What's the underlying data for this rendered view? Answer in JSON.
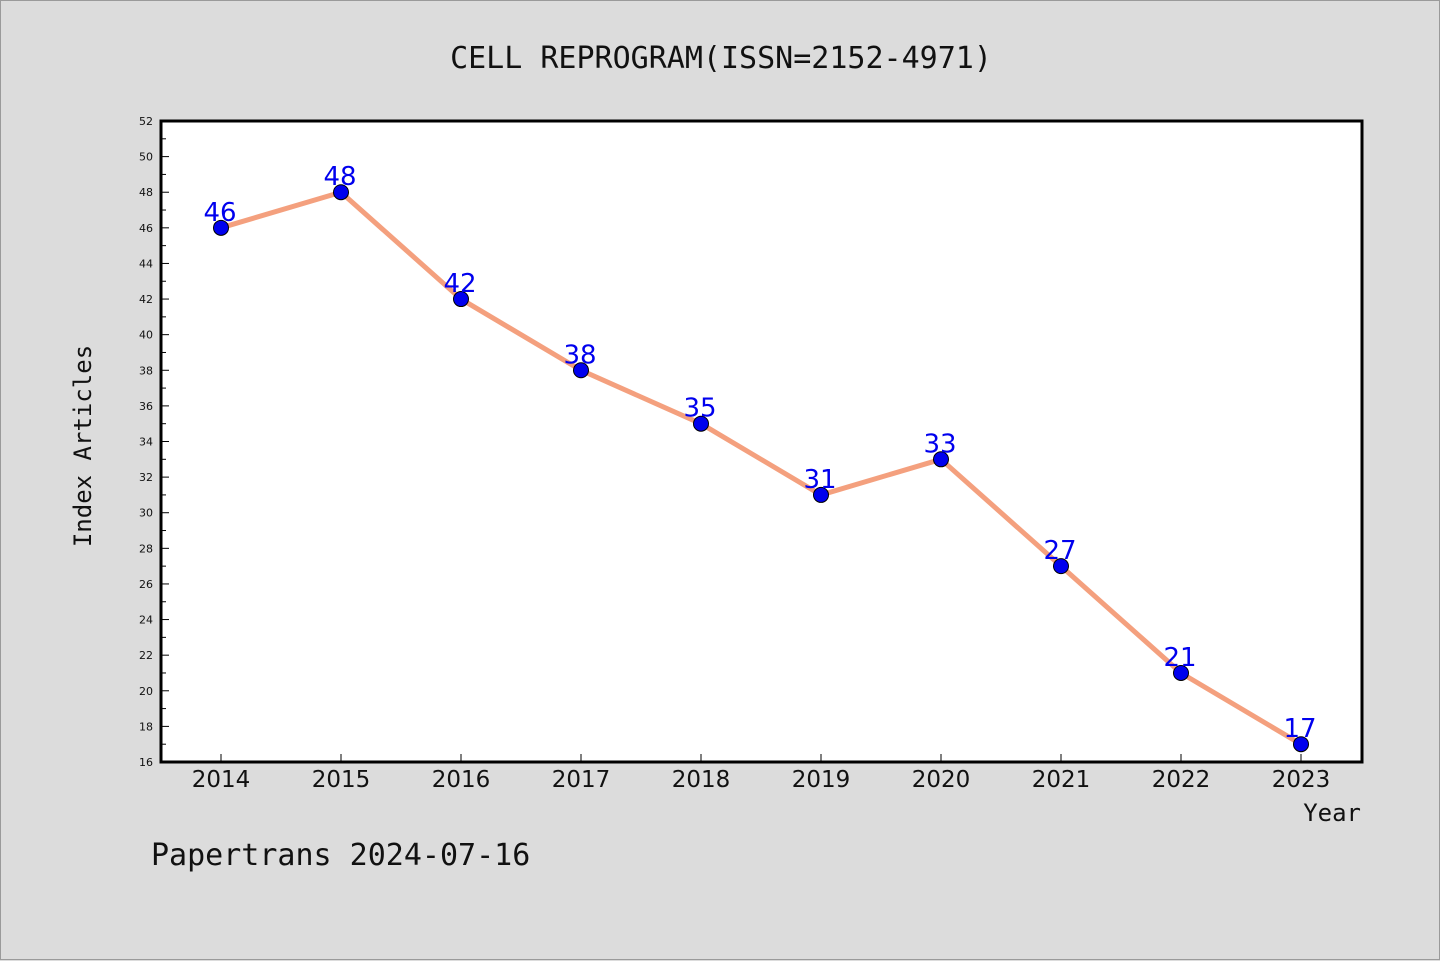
{
  "chart_data": {
    "type": "line",
    "title": "CELL REPROGRAM(ISSN=2152-4971)",
    "xlabel": "Year",
    "ylabel": "Index Articles",
    "categories": [
      "2014",
      "2015",
      "2016",
      "2017",
      "2018",
      "2019",
      "2020",
      "2021",
      "2022",
      "2023"
    ],
    "values": [
      46,
      48,
      42,
      38,
      35,
      31,
      33,
      27,
      21,
      17
    ],
    "ylim": [
      16,
      52
    ],
    "yticks": [
      16,
      18,
      20,
      22,
      24,
      26,
      28,
      30,
      32,
      34,
      36,
      38,
      40,
      42,
      44,
      46,
      48,
      50,
      52
    ],
    "grid": false,
    "line_color": "#f4a07e",
    "marker_color": "#0000ee",
    "label_color": "#0000ee"
  },
  "footer": "Papertrans 2024-07-16"
}
